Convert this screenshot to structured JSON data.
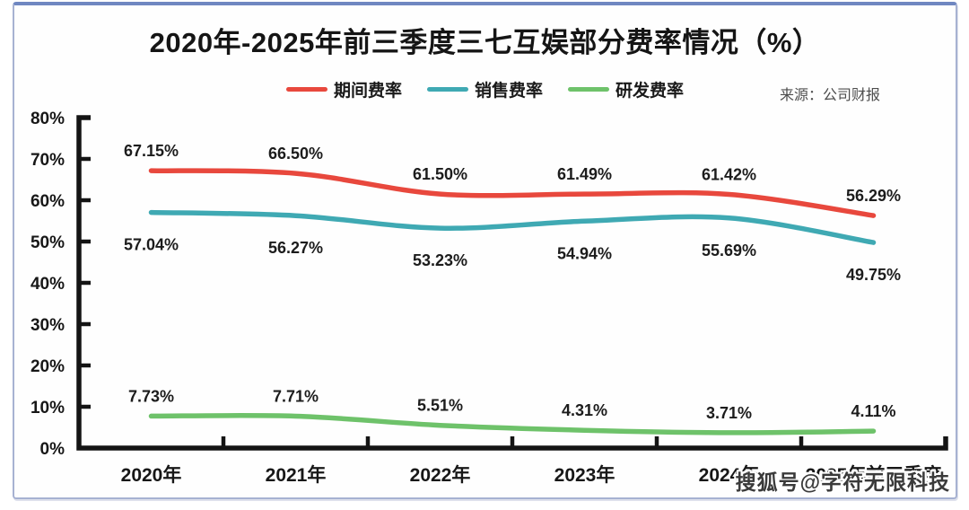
{
  "page": {
    "title": "2020年-2025年前三季度三七互娱部分费率情况（%）",
    "source": "来源：公司财报",
    "watermark": "搜狐号@字符无限科技"
  },
  "colors": {
    "period_expense": "#e8483d",
    "sales_expense": "#3fa9b3",
    "rd_expense": "#6ec26a",
    "axis": "#141414",
    "border_top": "#6f87c1",
    "border_side": "#a7b2d2"
  },
  "legend": [
    {
      "label": "期间费率",
      "color": "#e8483d"
    },
    {
      "label": "销售费率",
      "color": "#3fa9b3"
    },
    {
      "label": "研发费率",
      "color": "#6ec26a"
    }
  ],
  "chart_data": {
    "type": "line",
    "title": "2020年-2025年前三季度三七互娱部分费率情况（%）",
    "categories": [
      "2020年",
      "2021年",
      "2022年",
      "2023年",
      "2024年",
      "2025年前三季度"
    ],
    "series": [
      {
        "name": "期间费率",
        "color": "#e8483d",
        "values": [
          67.15,
          66.5,
          61.5,
          61.49,
          61.42,
          56.29
        ],
        "label_side": "above"
      },
      {
        "name": "销售费率",
        "color": "#3fa9b3",
        "values": [
          57.04,
          56.27,
          53.23,
          54.94,
          55.69,
          49.75
        ],
        "label_side": "below"
      },
      {
        "name": "研发费率",
        "color": "#6ec26a",
        "values": [
          7.73,
          7.71,
          5.51,
          4.31,
          3.71,
          4.11
        ],
        "label_side": "above"
      }
    ],
    "ylim": [
      0,
      80
    ],
    "ytick_step": 10,
    "ytick_labels": [
      "0%",
      "10%",
      "20%",
      "30%",
      "40%",
      "50%",
      "60%",
      "70%",
      "80%"
    ],
    "xlabel": "",
    "ylabel": "",
    "grid": false,
    "legend_position": "top-center",
    "data_label_format": "0.00%"
  }
}
